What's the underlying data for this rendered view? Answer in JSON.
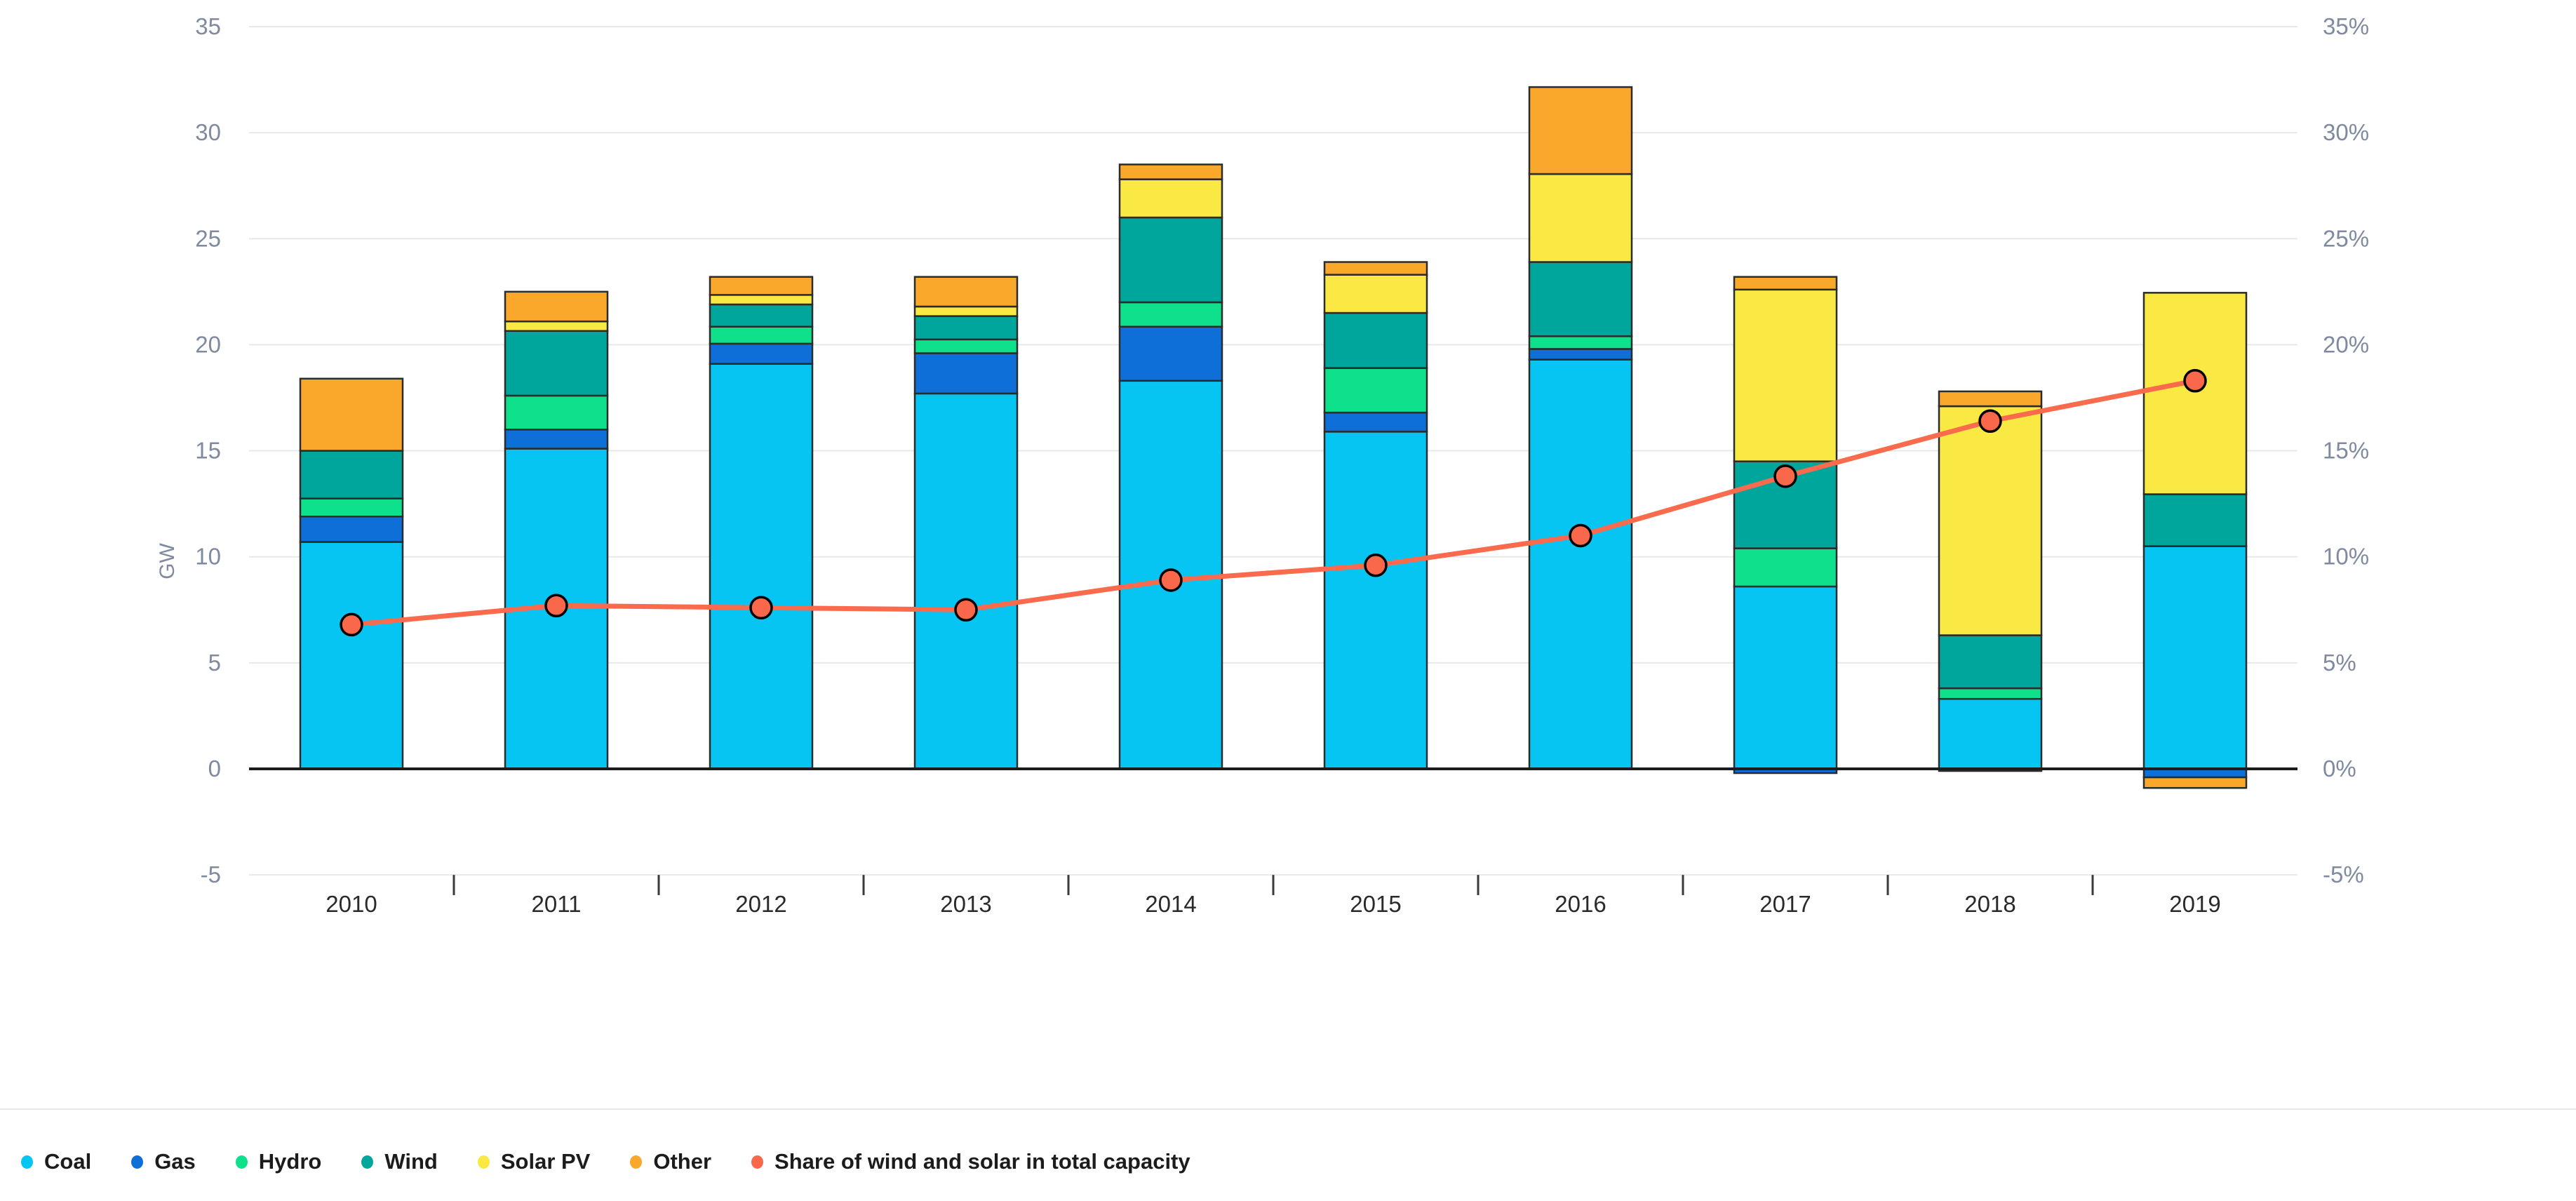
{
  "chart_data": {
    "type": "bar",
    "subtype": "stacked-bar-with-line",
    "title": "",
    "xlabel": "",
    "ylabel_left": "GW",
    "ylabel_right": "",
    "categories": [
      "2010",
      "2011",
      "2012",
      "2013",
      "2014",
      "2015",
      "2016",
      "2017",
      "2018",
      "2019"
    ],
    "series": [
      {
        "name": "Coal",
        "color": "#06c5f3",
        "values": [
          10.7,
          15.1,
          19.1,
          17.7,
          18.3,
          15.9,
          19.3,
          8.6,
          3.3,
          10.5
        ]
      },
      {
        "name": "Gas",
        "color": "#0e6fd9",
        "values": [
          1.2,
          0.9,
          0.95,
          1.9,
          2.55,
          0.9,
          0.5,
          -0.2,
          -0.1,
          -0.4
        ]
      },
      {
        "name": "Hydro",
        "color": "#0ee08c",
        "values": [
          0.85,
          1.6,
          0.8,
          0.65,
          1.15,
          2.1,
          0.6,
          1.8,
          0.5,
          0.0
        ]
      },
      {
        "name": "Wind",
        "color": "#00a69c",
        "values": [
          2.25,
          3.05,
          1.05,
          1.1,
          4.0,
          2.6,
          3.5,
          4.1,
          2.5,
          2.45
        ]
      },
      {
        "name": "Solar PV",
        "color": "#fbe943",
        "values": [
          0.0,
          0.45,
          0.45,
          0.45,
          1.8,
          1.8,
          4.15,
          8.1,
          10.8,
          9.5
        ]
      },
      {
        "name": "Other",
        "color": "#f9a82c",
        "values": [
          3.4,
          1.4,
          0.85,
          1.4,
          0.7,
          0.6,
          4.1,
          0.6,
          0.7,
          -0.5
        ]
      }
    ],
    "line_series": {
      "name": "Share of wind and solar in total capacity",
      "color": "#fa6a4d",
      "marker_fill": "#f9684a",
      "values_percent": [
        6.8,
        7.7,
        7.6,
        7.5,
        8.9,
        9.6,
        11.0,
        13.8,
        16.4,
        18.3
      ]
    },
    "axis_left": {
      "ticks": [
        "35",
        "30",
        "25",
        "20",
        "15",
        "10",
        "5",
        "0",
        "-5"
      ],
      "label": "GW",
      "min": -5,
      "max": 35
    },
    "axis_right": {
      "ticks": [
        "35%",
        "30%",
        "25%",
        "20%",
        "15%",
        "10%",
        "5%",
        "0%",
        "-5%"
      ],
      "min": -5,
      "max": 35
    },
    "grid": "horizontal",
    "legend_position": "bottom-left"
  },
  "legend": {
    "items": [
      {
        "label": "Coal",
        "color": "#06c5f3"
      },
      {
        "label": "Gas",
        "color": "#0e6fd9"
      },
      {
        "label": "Hydro",
        "color": "#0ee08c"
      },
      {
        "label": "Wind",
        "color": "#00a69c"
      },
      {
        "label": "Solar PV",
        "color": "#fbe943"
      },
      {
        "label": "Other",
        "color": "#f9a82c"
      },
      {
        "label": "Share of wind and solar in total capacity",
        "color": "#f9684a"
      }
    ]
  },
  "colors": {
    "grid": "#e8e8e8",
    "zero_axis": "#1c1c1c",
    "bar_border": "#2b2b2b",
    "tick_text": "#7f8aa0",
    "year_text": "#2a2a2a",
    "marker_ring": "#000000"
  }
}
